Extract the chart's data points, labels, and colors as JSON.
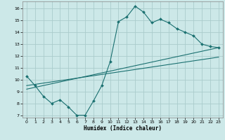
{
  "xlabel": "Humidex (Indice chaleur)",
  "bg_color": "#cce8e8",
  "grid_color": "#aacccc",
  "line_color": "#1a7070",
  "xlim": [
    -0.5,
    23.5
  ],
  "ylim": [
    6.8,
    16.6
  ],
  "xticks": [
    0,
    1,
    2,
    3,
    4,
    5,
    6,
    7,
    8,
    9,
    10,
    11,
    12,
    13,
    14,
    15,
    16,
    17,
    18,
    19,
    20,
    21,
    22,
    23
  ],
  "yticks": [
    7,
    8,
    9,
    10,
    11,
    12,
    13,
    14,
    15,
    16
  ],
  "line1_x": [
    0,
    1,
    2,
    3,
    4,
    5,
    6,
    7,
    8,
    9,
    10,
    11,
    12,
    13,
    14,
    15,
    16,
    17,
    18,
    19,
    20,
    21,
    22,
    23
  ],
  "line1_y": [
    10.3,
    9.5,
    8.6,
    8.0,
    8.3,
    7.7,
    7.0,
    7.0,
    8.2,
    9.5,
    11.5,
    14.9,
    15.3,
    16.2,
    15.7,
    14.8,
    15.1,
    14.8,
    14.3,
    14.0,
    13.7,
    13.0,
    12.8,
    12.7
  ],
  "line2_x": [
    0,
    23
  ],
  "line2_y": [
    9.2,
    12.7
  ],
  "line3_x": [
    0,
    23
  ],
  "line3_y": [
    9.5,
    11.9
  ]
}
